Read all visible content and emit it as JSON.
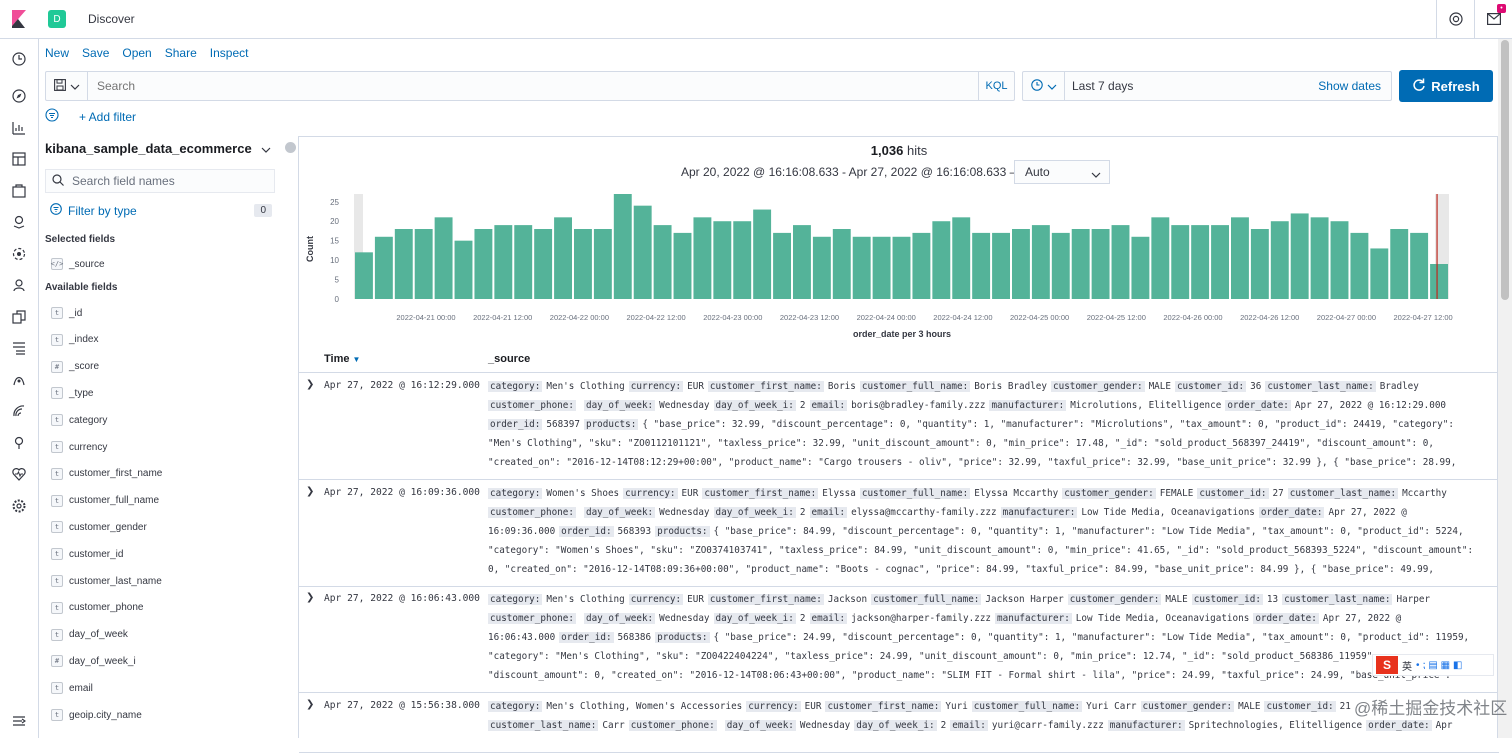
{
  "header": {
    "app_title": "Discover",
    "space_initial": "D"
  },
  "menu": {
    "new": "New",
    "save": "Save",
    "open": "Open",
    "share": "Share",
    "inspect": "Inspect"
  },
  "query": {
    "placeholder": "Search",
    "language": "KQL"
  },
  "timepicker": {
    "range": "Last 7 days",
    "show_dates": "Show dates",
    "refresh": "Refresh"
  },
  "filters": {
    "add_filter": "+ Add filter"
  },
  "sidebar": {
    "index_pattern": "kibana_sample_data_ecommerce",
    "search_placeholder": "Search field names",
    "filter_by_type": "Filter by type",
    "filter_count": "0",
    "selected_title": "Selected fields",
    "selected": [
      {
        "type": "</>",
        "name": "_source"
      }
    ],
    "available_title": "Available fields",
    "available": [
      {
        "type": "t",
        "name": "_id"
      },
      {
        "type": "t",
        "name": "_index"
      },
      {
        "type": "#",
        "name": "_score"
      },
      {
        "type": "t",
        "name": "_type"
      },
      {
        "type": "t",
        "name": "category"
      },
      {
        "type": "t",
        "name": "currency"
      },
      {
        "type": "t",
        "name": "customer_first_name"
      },
      {
        "type": "t",
        "name": "customer_full_name"
      },
      {
        "type": "t",
        "name": "customer_gender"
      },
      {
        "type": "t",
        "name": "customer_id"
      },
      {
        "type": "t",
        "name": "customer_last_name"
      },
      {
        "type": "t",
        "name": "customer_phone"
      },
      {
        "type": "t",
        "name": "day_of_week"
      },
      {
        "type": "#",
        "name": "day_of_week_i"
      },
      {
        "type": "t",
        "name": "email"
      },
      {
        "type": "t",
        "name": "geoip.city_name"
      }
    ]
  },
  "main": {
    "hits_count": "1,036",
    "hits_label": "hits",
    "date_range": "Apr 20, 2022 @ 16:16:08.633 - Apr 27, 2022 @ 16:16:08.633 —",
    "interval": "Auto",
    "col_time": "Time",
    "col_source": "_source"
  },
  "chart_data": {
    "type": "bar",
    "ylabel": "Count",
    "xlabel": "order_date per 3 hours",
    "ylim": [
      0,
      27
    ],
    "yticks": [
      0,
      5,
      10,
      15,
      20,
      25
    ],
    "xticks": [
      "2022-04-21 00:00",
      "2022-04-21 12:00",
      "2022-04-22 00:00",
      "2022-04-22 12:00",
      "2022-04-23 00:00",
      "2022-04-23 12:00",
      "2022-04-24 00:00",
      "2022-04-24 12:00",
      "2022-04-25 00:00",
      "2022-04-25 12:00",
      "2022-04-26 00:00",
      "2022-04-26 12:00",
      "2022-04-27 00:00",
      "2022-04-27 12:00"
    ],
    "bar_color": "#54b399",
    "values": [
      12,
      16,
      18,
      18,
      21,
      15,
      18,
      19,
      19,
      18,
      21,
      18,
      18,
      27,
      24,
      19,
      17,
      21,
      20,
      20,
      23,
      17,
      19,
      16,
      18,
      16,
      16,
      16,
      17,
      20,
      21,
      17,
      17,
      18,
      19,
      17,
      18,
      18,
      19,
      16,
      21,
      19,
      19,
      19,
      21,
      18,
      20,
      22,
      21,
      20,
      17,
      13,
      18,
      17,
      9
    ]
  },
  "documents": [
    {
      "time": "Apr 27, 2022 @ 16:12:29.000",
      "lines": [
        [
          [
            "category:",
            "Men's Clothing"
          ],
          [
            "currency:",
            "EUR"
          ],
          [
            "customer_first_name:",
            "Boris"
          ],
          [
            "customer_full_name:",
            "Boris Bradley"
          ],
          [
            "customer_gender:",
            "MALE"
          ],
          [
            "customer_id:",
            "36"
          ],
          [
            "customer_last_name:",
            "Bradley"
          ]
        ],
        [
          [
            "customer_phone:",
            ""
          ],
          [
            "day_of_week:",
            "Wednesday"
          ],
          [
            "day_of_week_i:",
            "2"
          ],
          [
            "email:",
            "boris@bradley-family.zzz"
          ],
          [
            "manufacturer:",
            "Microlutions, Elitelligence"
          ],
          [
            "order_date:",
            "Apr 27, 2022 @ 16:12:29.000"
          ]
        ],
        [
          [
            "order_id:",
            "568397"
          ],
          [
            "products:",
            "{ \"base_price\": 32.99, \"discount_percentage\": 0, \"quantity\": 1, \"manufacturer\": \"Microlutions\", \"tax_amount\": 0, \"product_id\": 24419, \"category\":"
          ]
        ],
        [
          [
            "",
            "\"Men's Clothing\", \"sku\": \"ZO0112101121\", \"taxless_price\": 32.99, \"unit_discount_amount\": 0, \"min_price\": 17.48, \"_id\": \"sold_product_568397_24419\", \"discount_amount\": 0,"
          ]
        ],
        [
          [
            "",
            "\"created_on\": \"2016-12-14T08:12:29+00:00\", \"product_name\": \"Cargo trousers - oliv\", \"price\": 32.99, \"taxful_price\": 32.99, \"base_unit_price\": 32.99 }, { \"base_price\": 28.99,"
          ]
        ]
      ]
    },
    {
      "time": "Apr 27, 2022 @ 16:09:36.000",
      "lines": [
        [
          [
            "category:",
            "Women's Shoes"
          ],
          [
            "currency:",
            "EUR"
          ],
          [
            "customer_first_name:",
            "Elyssa"
          ],
          [
            "customer_full_name:",
            "Elyssa Mccarthy"
          ],
          [
            "customer_gender:",
            "FEMALE"
          ],
          [
            "customer_id:",
            "27"
          ],
          [
            "customer_last_name:",
            "Mccarthy"
          ]
        ],
        [
          [
            "customer_phone:",
            ""
          ],
          [
            "day_of_week:",
            "Wednesday"
          ],
          [
            "day_of_week_i:",
            "2"
          ],
          [
            "email:",
            "elyssa@mccarthy-family.zzz"
          ],
          [
            "manufacturer:",
            "Low Tide Media, Oceanavigations"
          ],
          [
            "order_date:",
            "Apr 27, 2022 @"
          ]
        ],
        [
          [
            "",
            "16:09:36.000"
          ],
          [
            "order_id:",
            "568393"
          ],
          [
            "products:",
            "{ \"base_price\": 84.99, \"discount_percentage\": 0, \"quantity\": 1, \"manufacturer\": \"Low Tide Media\", \"tax_amount\": 0, \"product_id\": 5224,"
          ]
        ],
        [
          [
            "",
            "\"category\": \"Women's Shoes\", \"sku\": \"ZO0374103741\", \"taxless_price\": 84.99, \"unit_discount_amount\": 0, \"min_price\": 41.65, \"_id\": \"sold_product_568393_5224\", \"discount_amount\":"
          ]
        ],
        [
          [
            "",
            "0, \"created_on\": \"2016-12-14T08:09:36+00:00\", \"product_name\": \"Boots - cognac\", \"price\": 84.99, \"taxful_price\": 84.99, \"base_unit_price\": 84.99 }, { \"base_price\": 49.99,"
          ]
        ]
      ]
    },
    {
      "time": "Apr 27, 2022 @ 16:06:43.000",
      "lines": [
        [
          [
            "category:",
            "Men's Clothing"
          ],
          [
            "currency:",
            "EUR"
          ],
          [
            "customer_first_name:",
            "Jackson"
          ],
          [
            "customer_full_name:",
            "Jackson Harper"
          ],
          [
            "customer_gender:",
            "MALE"
          ],
          [
            "customer_id:",
            "13"
          ],
          [
            "customer_last_name:",
            "Harper"
          ]
        ],
        [
          [
            "customer_phone:",
            ""
          ],
          [
            "day_of_week:",
            "Wednesday"
          ],
          [
            "day_of_week_i:",
            "2"
          ],
          [
            "email:",
            "jackson@harper-family.zzz"
          ],
          [
            "manufacturer:",
            "Low Tide Media, Oceanavigations"
          ],
          [
            "order_date:",
            "Apr 27, 2022 @"
          ]
        ],
        [
          [
            "",
            "16:06:43.000"
          ],
          [
            "order_id:",
            "568386"
          ],
          [
            "products:",
            "{ \"base_price\": 24.99, \"discount_percentage\": 0, \"quantity\": 1, \"manufacturer\": \"Low Tide Media\", \"tax_amount\": 0, \"product_id\": 11959,"
          ]
        ],
        [
          [
            "",
            "\"category\": \"Men's Clothing\", \"sku\": \"ZO0422404224\", \"taxless_price\": 24.99, \"unit_discount_amount\": 0, \"min_price\": 12.74, \"_id\": \"sold_product_568386_11959\","
          ]
        ],
        [
          [
            "",
            "\"discount_amount\": 0, \"created_on\": \"2016-12-14T08:06:43+00:00\", \"product_name\": \"SLIM FIT - Formal shirt - lila\", \"price\": 24.99, \"taxful_price\": 24.99, \"base_unit_price\":"
          ]
        ]
      ]
    },
    {
      "time": "Apr 27, 2022 @ 15:56:38.000",
      "lines": [
        [
          [
            "category:",
            "Men's Clothing, Women's Accessories"
          ],
          [
            "currency:",
            "EUR"
          ],
          [
            "customer_first_name:",
            "Yuri"
          ],
          [
            "customer_full_name:",
            "Yuri Carr"
          ],
          [
            "customer_gender:",
            "MALE"
          ],
          [
            "customer_id:",
            "21"
          ]
        ],
        [
          [
            "customer_last_name:",
            "Carr"
          ],
          [
            "customer_phone:",
            ""
          ],
          [
            "day_of_week:",
            "Wednesday"
          ],
          [
            "day_of_week_i:",
            "2"
          ],
          [
            "email:",
            "yuri@carr-family.zzz"
          ],
          [
            "manufacturer:",
            "Spritechnologies, Elitelligence"
          ],
          [
            "order_date:",
            "Apr"
          ]
        ]
      ]
    }
  ],
  "overlay": {
    "ime_label": "英",
    "watermark": "@稀土掘金技术社区"
  }
}
